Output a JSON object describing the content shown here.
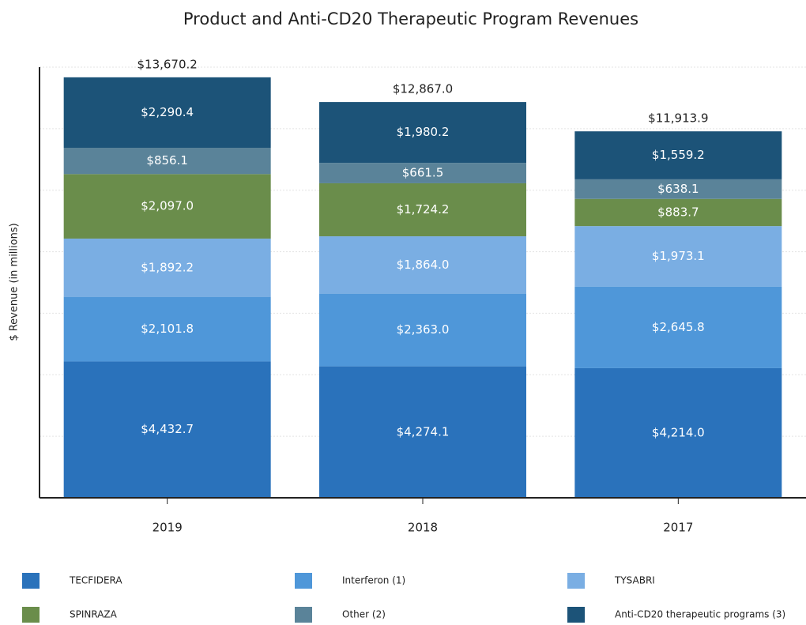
{
  "chart_data": {
    "type": "stacked_bar",
    "title": "Product and Anti-CD20 Therapeutic Program Revenues",
    "y_label": "$ Revenue (in millions)",
    "categories": [
      "2019",
      "2018",
      "2017"
    ],
    "series": [
      {
        "name": "TECFIDERA",
        "color": "#2a72bb",
        "values": [
          4432.7,
          4274.1,
          4214.0
        ],
        "value_labels": [
          "$4,432.7",
          "$4,274.1",
          "$4,214.0"
        ]
      },
      {
        "name": "Interferon (1)",
        "color": "#4f97d9",
        "values": [
          2101.8,
          2363.0,
          2645.8
        ],
        "value_labels": [
          "$2,101.8",
          "$2,363.0",
          "$2,645.8"
        ]
      },
      {
        "name": "TYSABRI",
        "color": "#7aaee3",
        "values": [
          1892.2,
          1864.0,
          1973.1
        ],
        "value_labels": [
          "$1,892.2",
          "$1,864.0",
          "$1,973.1"
        ]
      },
      {
        "name": "SPINRAZA",
        "color": "#6a8d4b",
        "values": [
          2097.0,
          1724.2,
          883.7
        ],
        "value_labels": [
          "$2,097.0",
          "$1,724.2",
          "$883.7"
        ]
      },
      {
        "name": "Other (2)",
        "color": "#5a8399",
        "values": [
          856.1,
          661.5,
          638.1
        ],
        "value_labels": [
          "$856.1",
          "$661.5",
          "$638.1"
        ]
      },
      {
        "name": "Anti-CD20 therapeutic programs (3)",
        "color": "#1c5378",
        "values": [
          2290.4,
          1980.2,
          1559.2
        ],
        "value_labels": [
          "$2,290.4",
          "$1,980.2",
          "$1,559.2"
        ]
      }
    ],
    "totals": [
      13670.2,
      12867.0,
      11913.9
    ],
    "total_labels": [
      "$13,670.2",
      "$12,867.0",
      "$11,913.9"
    ],
    "ylim": [
      0,
      14000
    ],
    "yticks": [
      0,
      2000,
      4000,
      6000,
      8000,
      10000,
      12000,
      14000
    ],
    "grid": true,
    "legend": "bottom"
  }
}
